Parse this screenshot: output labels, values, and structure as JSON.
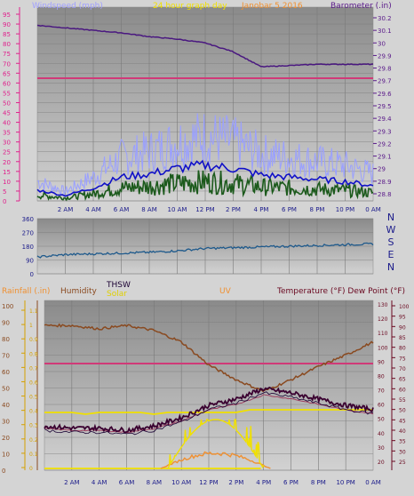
{
  "header": {
    "windspeed_label": "Windspeed (mph)",
    "graph_label": "24 hour graph day",
    "date_label": "Janobar 5 2016",
    "barometer_label": "Barometer (.in)"
  },
  "colors": {
    "background": "#d4d4d4",
    "plot_top": "#8a8a8a",
    "plot_bottom": "#d2d2d2",
    "wind_left_axis": "#e0208c",
    "wind_right_axis": "#5a1a8a",
    "baro": "#4a1880",
    "dewline": "#d03a78",
    "gust": "#9aa0ff",
    "avg": "#1010c8",
    "low": "#1c5a1c",
    "dir": "#1f5a8c",
    "rain_axis": "#d4a000",
    "humidity": "#8a4a20",
    "thsw": "#1a0033",
    "solar": "#f0e000",
    "uv": "#f09030",
    "temp": "#6a0820",
    "dew": "#6a0820",
    "temp_line": "#a04060",
    "dark_purple": "#3a0030"
  },
  "wind_panel": {
    "left_ticks": [
      "0",
      "5",
      "10",
      "15",
      "20",
      "25",
      "30",
      "35",
      "40",
      "45",
      "50",
      "55",
      "60",
      "65",
      "70",
      "75",
      "80",
      "85",
      "90",
      "95"
    ],
    "right_ticks": [
      "28.8",
      "28.9",
      "29",
      "29.1",
      "29.2",
      "29.3",
      "29.4",
      "29.5",
      "29.6",
      "29.7",
      "29.8",
      "29.9",
      "30",
      "30.1",
      "30.2"
    ],
    "x_ticks": [
      "2 AM",
      "4 AM",
      "6 AM",
      "8 AM",
      "10 AM",
      "12 PM",
      "2 PM",
      "4 PM",
      "6 PM",
      "8 PM",
      "10 PM",
      "0 AM"
    ]
  },
  "direction_panel": {
    "left_ticks": [
      "0",
      "90",
      "180",
      "270",
      "360"
    ],
    "compass": [
      "N",
      "W",
      "S",
      "E",
      "N"
    ]
  },
  "lower_panel": {
    "rain_label": "Rainfall (.in)",
    "humidity_label": "Humidity",
    "thsw_label": "THSW",
    "solar_label": "Solar",
    "uv_label": "UV",
    "temp_label": "Temperature (°F) Dew Point (°F)",
    "rain_ticks": [
      "0",
      "0.1",
      "0.2",
      "0.3",
      "0.4",
      "0.5",
      "0.6",
      "0.7",
      "0.8",
      "0.9",
      "1",
      "1.1"
    ],
    "humidity_ticks": [
      "0",
      "10",
      "20",
      "30",
      "40",
      "50",
      "60",
      "70",
      "80",
      "90",
      "100"
    ],
    "temp_left_ticks": [
      "20",
      "30",
      "40",
      "50",
      "60",
      "70",
      "80",
      "90",
      "100",
      "110",
      "120",
      "130"
    ],
    "temp_right_ticks": [
      "25",
      "30",
      "35",
      "40",
      "45",
      "50",
      "55",
      "60",
      "65",
      "70",
      "75",
      "80",
      "85",
      "90",
      "95",
      "100"
    ],
    "x_ticks": [
      "2 AM",
      "4 AM",
      "6 AM",
      "8 AM",
      "10 AM",
      "12 PM",
      "2 PM",
      "4 PM",
      "6 PM",
      "8 PM",
      "10 PM",
      "0 AM"
    ]
  },
  "chart_data": [
    {
      "type": "line",
      "title": "24 hour graph day",
      "x_hours": [
        0,
        2,
        4,
        6,
        8,
        10,
        12,
        14,
        16,
        18,
        20,
        22,
        24
      ],
      "series": [
        {
          "name": "Barometer (.in)",
          "axis": "right",
          "values": [
            30.14,
            30.12,
            30.1,
            30.08,
            30.05,
            30.03,
            30.0,
            29.93,
            29.81,
            29.82,
            29.83,
            29.83,
            29.83
          ]
        },
        {
          "name": "Windspeed (mph)",
          "axis": "left",
          "values": [
            10,
            5,
            12,
            22,
            25,
            30,
            33,
            30,
            24,
            22,
            20,
            18,
            14
          ]
        }
      ],
      "ylim_left": [
        0,
        95
      ],
      "ylim_right": [
        28.8,
        30.2
      ]
    },
    {
      "type": "line",
      "x_hours": [
        0,
        2,
        4,
        6,
        8,
        10,
        12,
        14,
        16,
        18,
        20,
        22,
        24
      ],
      "series": [
        {
          "name": "Wind direction",
          "values": [
            110,
            125,
            130,
            135,
            140,
            150,
            165,
            170,
            175,
            180,
            185,
            190,
            195
          ]
        }
      ],
      "ylim": [
        0,
        360
      ]
    },
    {
      "type": "line",
      "x_hours": [
        0,
        2,
        4,
        6,
        8,
        10,
        12,
        14,
        16,
        18,
        20,
        22,
        24
      ],
      "series": [
        {
          "name": "Humidity",
          "values": [
            88,
            88,
            86,
            88,
            85,
            78,
            64,
            55,
            48,
            55,
            63,
            70,
            78
          ]
        },
        {
          "name": "Temperature (°F)",
          "values": [
            42,
            41,
            41,
            40,
            42,
            46,
            52,
            55,
            60,
            58,
            55,
            52,
            50
          ]
        },
        {
          "name": "Solar",
          "values": [
            0,
            0,
            0,
            0,
            0,
            100,
            410,
            470,
            0,
            0,
            0,
            0,
            0
          ]
        },
        {
          "name": "UV",
          "values": [
            0,
            0,
            0,
            0,
            0,
            1,
            3,
            3,
            0,
            0,
            0,
            0,
            0
          ]
        }
      ],
      "ylim_humidity": [
        0,
        100
      ]
    }
  ]
}
